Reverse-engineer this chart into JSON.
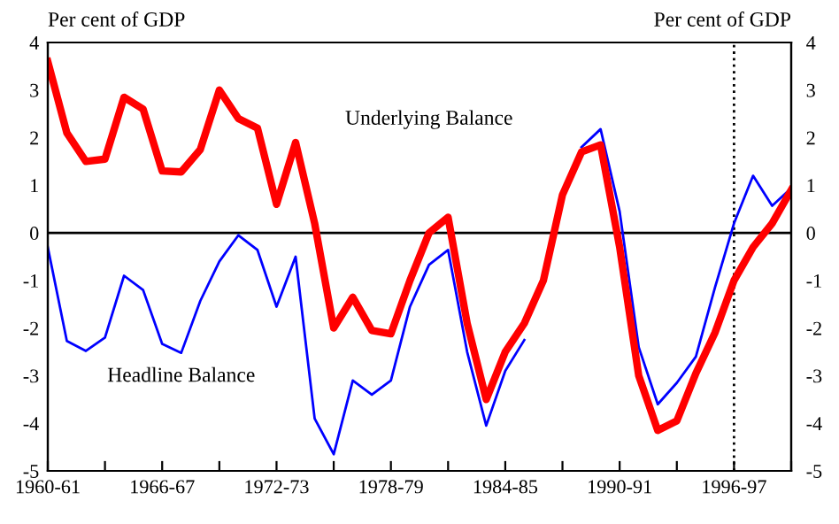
{
  "chart_data": {
    "type": "line",
    "ylabel": "Per cent of GDP",
    "y2label": "Per cent of GDP",
    "categories": [
      "1960-61",
      null,
      null,
      null,
      null,
      null,
      "1966-67",
      null,
      null,
      null,
      null,
      null,
      "1972-73",
      null,
      null,
      null,
      null,
      null,
      "1978-79",
      null,
      null,
      null,
      null,
      null,
      "1984-85",
      null,
      null,
      null,
      null,
      null,
      "1990-91",
      null,
      null,
      null,
      null,
      null,
      "1996-97",
      null,
      null,
      null
    ],
    "series": [
      {
        "name": "Underlying Balance",
        "color": "#ff0000",
        "values": [
          3.6,
          2.1,
          1.5,
          1.55,
          2.85,
          2.6,
          1.3,
          1.28,
          1.75,
          3.0,
          2.4,
          2.2,
          0.6,
          1.9,
          0.2,
          -2.0,
          -1.35,
          -2.05,
          -2.12,
          -1.0,
          0.0,
          0.33,
          -1.9,
          -3.5,
          -2.5,
          -1.9,
          -1.0,
          0.8,
          1.7,
          1.85,
          -0.3,
          -3.0,
          -4.15,
          -3.95,
          -2.95,
          -2.1,
          -1.0,
          -0.3,
          0.2,
          0.9
        ]
      },
      {
        "name": "Headline Balance",
        "color": "#0000ff",
        "values": [
          -0.3,
          -2.27,
          -2.48,
          -2.2,
          -0.9,
          -1.2,
          -2.33,
          -2.52,
          -1.43,
          -0.6,
          -0.05,
          -0.36,
          -1.55,
          -0.5,
          -3.9,
          -4.65,
          -3.1,
          -3.4,
          -3.1,
          -1.55,
          -0.67,
          -0.36,
          -2.5,
          -4.05,
          -2.9,
          -2.25,
          null,
          null,
          1.8,
          2.18,
          0.45,
          -2.4,
          -3.6,
          -3.15,
          -2.6,
          -1.15,
          0.2,
          1.2,
          0.57,
          0.94
        ]
      }
    ],
    "ylim": [
      -5,
      4
    ],
    "yticks": [
      {
        "value": -5,
        "label": "-5"
      },
      {
        "value": -4,
        "label": "-4"
      },
      {
        "value": -3,
        "label": "-3"
      },
      {
        "value": -2,
        "label": "-2"
      },
      {
        "value": -1,
        "label": "-1"
      },
      0,
      1,
      2,
      3,
      4
    ],
    "y2lim": [
      -5,
      4
    ],
    "y2ticks": [
      {
        "value": -5,
        "label": "-5"
      },
      {
        "value": -4,
        "label": "-4"
      },
      {
        "value": -3,
        "label": "-3"
      },
      {
        "value": -2,
        "label": "-2"
      },
      {
        "value": -1,
        "label": "-1"
      },
      0,
      1,
      2,
      3,
      4
    ],
    "ref_lines": [
      {
        "axis": "y",
        "value": 0,
        "color": "#000000",
        "line_style": "solid"
      },
      {
        "axis": "x",
        "value": "1996-97",
        "color": "#000000",
        "line_style": "dotted"
      }
    ],
    "grid": false,
    "legend": false,
    "marker": "none"
  }
}
